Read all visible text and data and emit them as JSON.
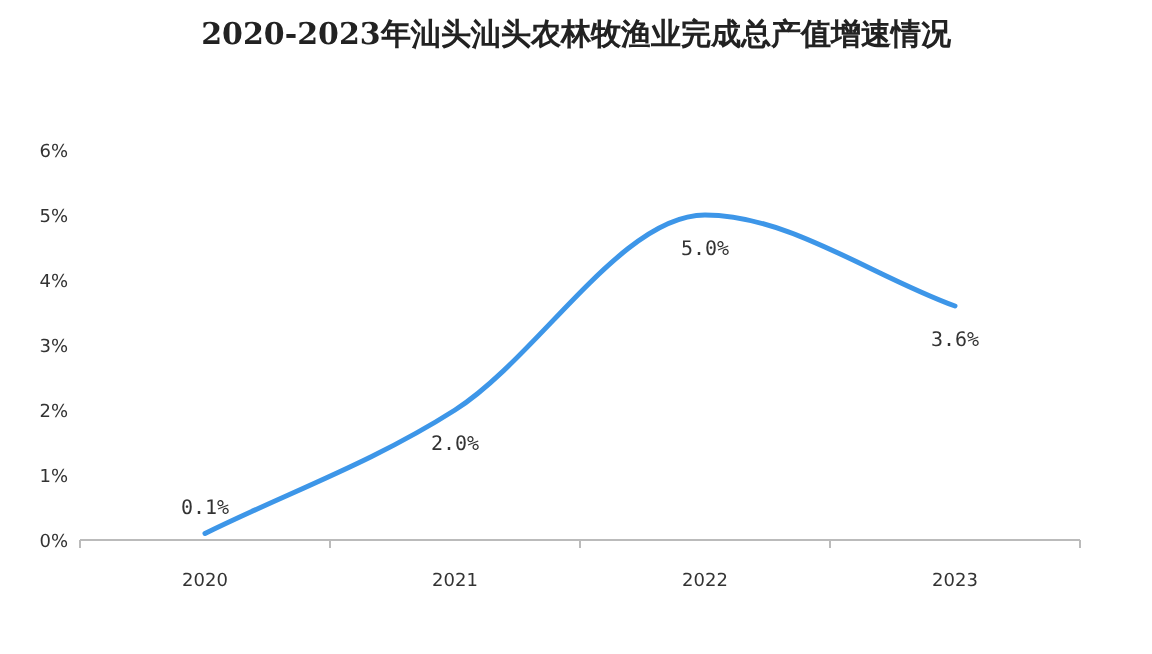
{
  "chart_data": {
    "type": "line",
    "title": "2020-2023年汕头汕头农林牧渔业完成总产值增速情况",
    "categories": [
      "2020",
      "2021",
      "2022",
      "2023"
    ],
    "series": [
      {
        "color": "#3d96e8",
        "values": [
          0.1,
          2.0,
          5.0,
          3.6
        ],
        "value_labels": [
          "0.1%",
          "2.0%",
          "5.0%",
          "3.6%"
        ]
      }
    ],
    "ylim": [
      0,
      6
    ],
    "yticks": [
      {
        "value": 0,
        "label": "0%"
      },
      {
        "value": 1,
        "label": "1%"
      },
      {
        "value": 2,
        "label": "2%"
      },
      {
        "value": 3,
        "label": "3%"
      },
      {
        "value": 4,
        "label": "4%"
      },
      {
        "value": 5,
        "label": "5%"
      },
      {
        "value": 6,
        "label": "6%"
      }
    ]
  }
}
